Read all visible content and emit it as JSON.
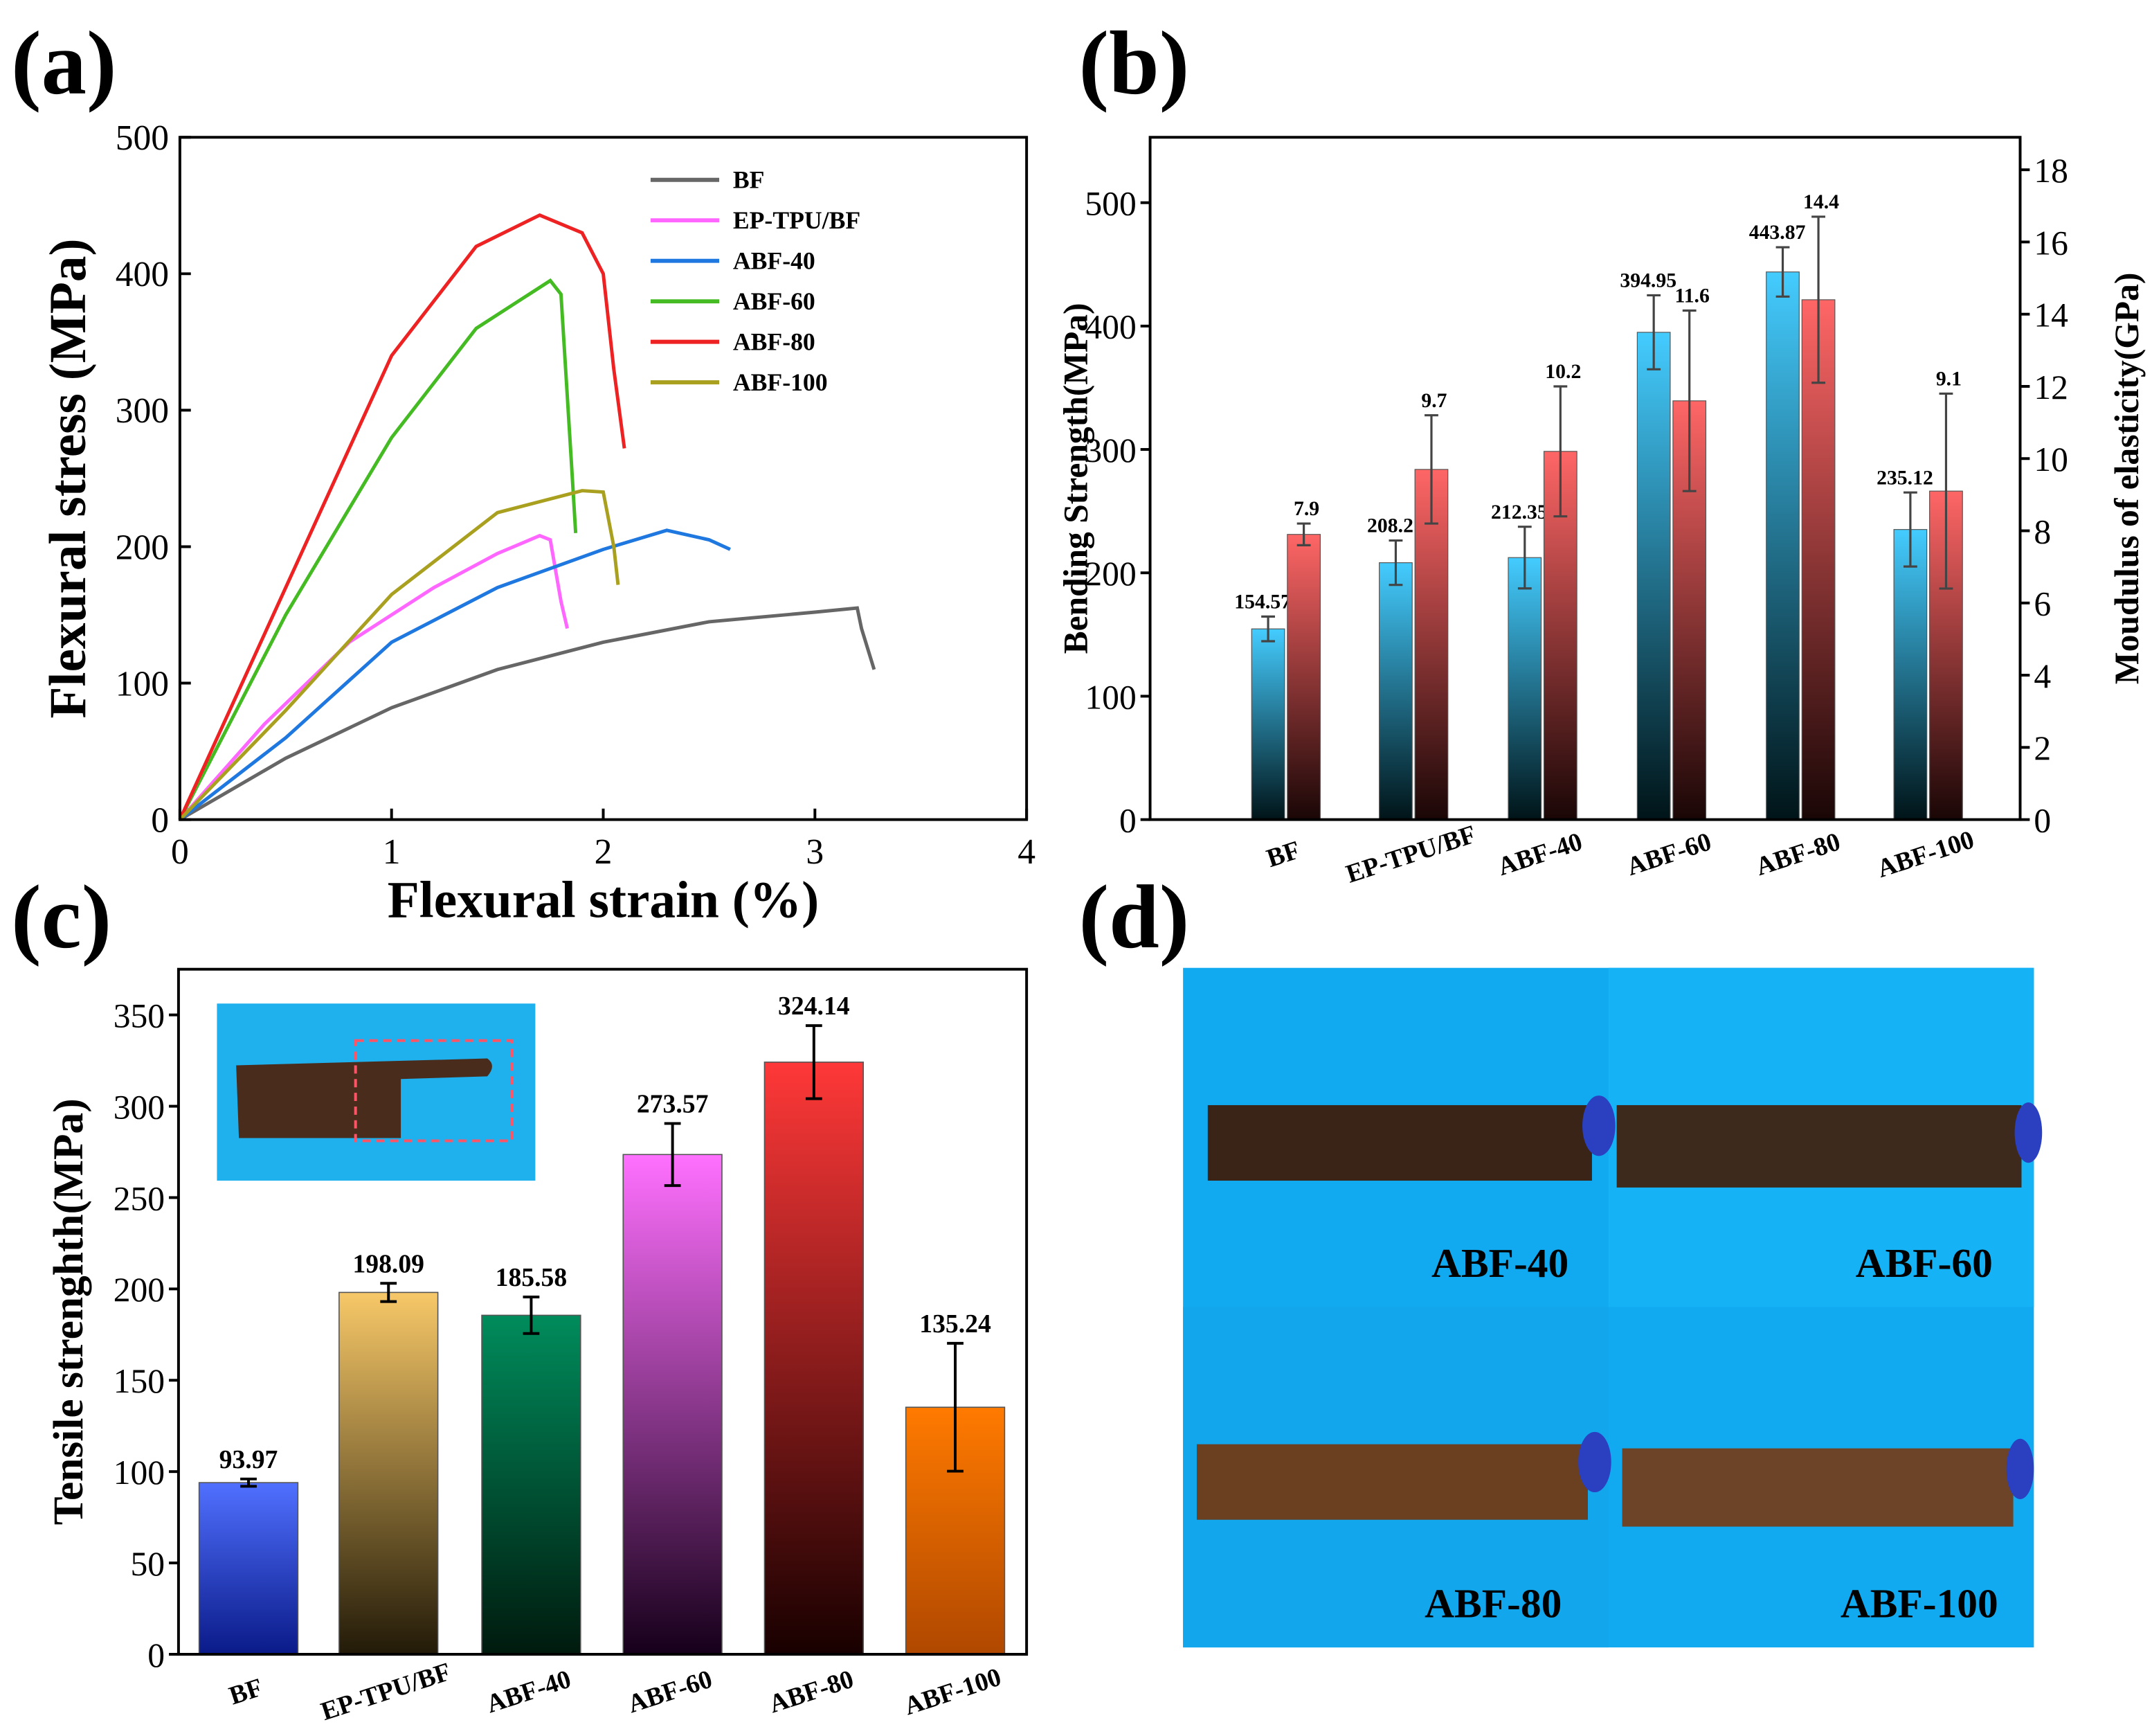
{
  "panels": {
    "a": "(a)",
    "b": "(b)",
    "c": "(c)",
    "d": "(d)"
  },
  "chart_data": [
    {
      "type": "line",
      "panel": "a",
      "xlabel": "Flexural strain (%)",
      "ylabel": "Flexural stress (MPa)",
      "xlim": [
        0,
        4
      ],
      "ylim": [
        0,
        500
      ],
      "xticks": [
        "0",
        "1",
        "2",
        "3",
        "4"
      ],
      "yticks": [
        "0",
        "100",
        "200",
        "300",
        "400",
        "500"
      ],
      "legend_position": "top-right",
      "series": [
        {
          "name": "BF",
          "color": "#666666",
          "x": [
            0,
            0.5,
            1,
            1.5,
            2,
            2.5,
            3,
            3.2,
            3.22,
            3.28
          ],
          "y": [
            0,
            45,
            82,
            110,
            130,
            145,
            152,
            155,
            140,
            110
          ]
        },
        {
          "name": "EP-TPU/BF",
          "color": "#ff66ff",
          "x": [
            0,
            0.4,
            0.8,
            1.2,
            1.5,
            1.7,
            1.75,
            1.8,
            1.83
          ],
          "y": [
            0,
            70,
            130,
            170,
            195,
            208,
            205,
            160,
            140
          ]
        },
        {
          "name": "ABF-40",
          "color": "#1e78e0",
          "x": [
            0,
            0.5,
            1,
            1.5,
            2,
            2.3,
            2.5,
            2.6
          ],
          "y": [
            0,
            60,
            130,
            170,
            198,
            212,
            205,
            198
          ]
        },
        {
          "name": "ABF-60",
          "color": "#44bb22",
          "x": [
            0,
            0.5,
            1,
            1.4,
            1.75,
            1.8,
            1.85,
            1.87
          ],
          "y": [
            0,
            150,
            280,
            360,
            395,
            385,
            260,
            210
          ]
        },
        {
          "name": "ABF-80",
          "color": "#ee2222",
          "x": [
            0,
            0.5,
            1,
            1.4,
            1.7,
            1.9,
            2.0,
            2.05,
            2.1
          ],
          "y": [
            0,
            170,
            340,
            420,
            443,
            430,
            400,
            330,
            272
          ]
        },
        {
          "name": "ABF-100",
          "color": "#aaa020",
          "x": [
            0,
            0.5,
            1,
            1.5,
            1.9,
            2.0,
            2.05,
            2.07
          ],
          "y": [
            0,
            80,
            165,
            225,
            241,
            240,
            200,
            172
          ]
        }
      ]
    },
    {
      "type": "bar",
      "panel": "b",
      "categories": [
        "BF",
        "EP-TPU/BF",
        "ABF-40",
        "ABF-60",
        "ABF-80",
        "ABF-100"
      ],
      "ylabel": "Bending Strength(MPa)",
      "y2label": "Moudulus of elasticity(GPa)",
      "ylim": [
        0,
        553
      ],
      "y2lim": [
        0,
        18.9
      ],
      "yticks": [
        "0",
        "100",
        "200",
        "300",
        "400",
        "500"
      ],
      "y2ticks": [
        "0",
        "2",
        "4",
        "6",
        "8",
        "10",
        "12",
        "14",
        "16",
        "18"
      ],
      "series": [
        {
          "name": "Bending Strength",
          "axis": "left",
          "color_top": "#44ccff",
          "color_bottom": "#001418",
          "values": [
            154.57,
            208.2,
            212.35,
            394.95,
            443.87,
            235.12
          ],
          "errors": [
            10,
            18,
            25,
            30,
            20,
            30
          ],
          "labels": [
            "154.57",
            "208.2",
            "212.35",
            "394.95",
            "443.87",
            "235.12"
          ]
        },
        {
          "name": "Modulus of elasticity",
          "axis": "right",
          "color_top": "#ff6666",
          "color_bottom": "#1a0606",
          "values": [
            7.9,
            9.7,
            10.2,
            11.6,
            14.4,
            9.1
          ],
          "errors": [
            0.3,
            1.5,
            1.8,
            2.5,
            2.3,
            2.7
          ],
          "labels": [
            "7.9",
            "9.7",
            "10.2",
            "11.6",
            "14.4",
            "9.1"
          ]
        }
      ]
    },
    {
      "type": "bar",
      "panel": "c",
      "categories": [
        "BF",
        "EP-TPU/BF",
        "ABF-40",
        "ABF-60",
        "ABF-80",
        "ABF-100"
      ],
      "ylabel": "Tensile strenghth(MPa)",
      "ylim": [
        0,
        375
      ],
      "yticks": [
        "0",
        "50",
        "100",
        "150",
        "200",
        "250",
        "300",
        "350"
      ],
      "values": [
        93.97,
        198.09,
        185.58,
        273.57,
        324.14,
        135.24
      ],
      "errors": [
        2,
        5,
        10,
        17,
        20,
        35
      ],
      "labels": [
        "93.97",
        "198.09",
        "185.58",
        "273.57",
        "324.14",
        "135.24"
      ],
      "colors_top": [
        "#5070ff",
        "#f7c868",
        "#008c5c",
        "#ff70ff",
        "#ff3838",
        "#ff7a00"
      ],
      "colors_bottom": [
        "#0a1a88",
        "#221a08",
        "#001a0e",
        "#16001a",
        "#180000",
        "#b04800"
      ]
    }
  ],
  "photos": {
    "d": {
      "labels": [
        "ABF-40",
        "ABF-60",
        "ABF-80",
        "ABF-100"
      ]
    }
  }
}
